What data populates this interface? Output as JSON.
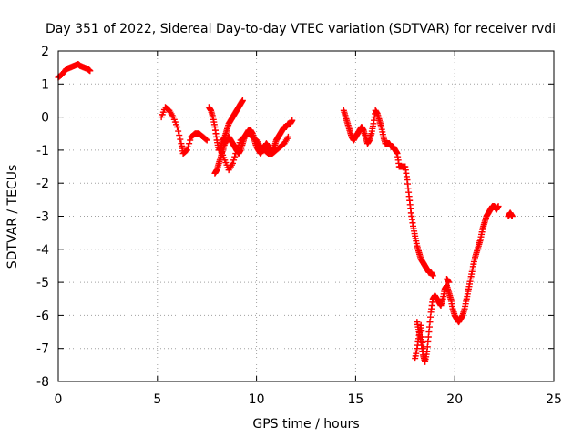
{
  "chart_data": {
    "type": "scatter",
    "title": "Day 351 of 2022, Sidereal Day-to-day VTEC variation (SDTVAR) for receiver rvdi",
    "xlabel": "GPS time / hours",
    "ylabel": "SDTVAR / TECUs",
    "xlim": [
      0,
      25
    ],
    "ylim": [
      -8,
      2
    ],
    "x_ticks": [
      0,
      5,
      10,
      15,
      20,
      25
    ],
    "y_ticks": [
      2,
      1,
      0,
      -1,
      -2,
      -3,
      -4,
      -5,
      -6,
      -7,
      -8
    ],
    "grid": true,
    "marker": "+",
    "marker_color": "#ff0000",
    "series": [
      {
        "x": [
          0.0,
          0.2,
          0.4,
          0.6,
          0.8,
          1.0,
          1.1,
          1.3,
          1.5,
          1.6
        ],
        "y": [
          1.2,
          1.3,
          1.45,
          1.5,
          1.55,
          1.6,
          1.55,
          1.5,
          1.45,
          1.4
        ]
      },
      {
        "x": [
          5.2,
          5.4,
          5.6,
          5.8,
          6.0,
          6.2,
          6.3,
          6.5,
          6.7,
          6.9,
          7.1,
          7.3,
          7.5
        ],
        "y": [
          0.0,
          0.3,
          0.2,
          0.0,
          -0.3,
          -0.8,
          -1.1,
          -1.0,
          -0.6,
          -0.5,
          -0.5,
          -0.6,
          -0.7
        ]
      },
      {
        "x": [
          7.6,
          7.7,
          7.8,
          7.9,
          8.0,
          8.1,
          8.2,
          8.3,
          8.4,
          8.5,
          8.6,
          8.7,
          8.8,
          8.9,
          9.0,
          9.1,
          9.2,
          9.3
        ],
        "y": [
          0.3,
          0.2,
          0.0,
          -0.3,
          -0.7,
          -1.0,
          -0.9,
          -0.7,
          -0.6,
          -0.4,
          -0.2,
          -0.1,
          0.0,
          0.1,
          0.2,
          0.3,
          0.4,
          0.5
        ]
      },
      {
        "x": [
          7.9,
          8.0,
          8.1,
          8.2,
          8.3,
          8.4,
          8.5,
          8.6,
          8.7,
          8.8,
          8.9,
          9.0,
          9.1,
          9.2,
          9.3,
          9.4,
          9.5,
          9.6,
          9.7,
          9.8,
          9.9,
          10.0,
          10.1,
          10.2,
          10.3,
          10.4,
          10.5,
          10.6,
          10.7,
          10.8,
          10.9,
          11.0,
          11.1,
          11.2,
          11.3,
          11.4,
          11.5,
          11.6,
          11.7,
          11.8
        ],
        "y": [
          -1.7,
          -1.6,
          -1.4,
          -1.2,
          -1.0,
          -0.8,
          -0.7,
          -0.6,
          -0.7,
          -0.8,
          -0.9,
          -1.0,
          -1.1,
          -1.0,
          -0.8,
          -0.6,
          -0.5,
          -0.4,
          -0.4,
          -0.5,
          -0.7,
          -0.9,
          -1.0,
          -1.1,
          -1.0,
          -0.9,
          -0.8,
          -0.9,
          -1.0,
          -1.0,
          -0.9,
          -0.7,
          -0.6,
          -0.5,
          -0.4,
          -0.3,
          -0.3,
          -0.2,
          -0.2,
          -0.1
        ]
      },
      {
        "x": [
          8.2,
          8.4,
          8.6,
          8.8,
          9.0,
          9.2,
          9.4,
          9.6,
          9.8,
          10.0,
          10.2,
          10.4,
          10.6,
          10.8,
          11.0,
          11.2,
          11.4,
          11.6
        ],
        "y": [
          -1.0,
          -1.3,
          -1.6,
          -1.4,
          -1.0,
          -0.7,
          -0.6,
          -0.5,
          -0.6,
          -0.7,
          -0.9,
          -1.0,
          -1.1,
          -1.1,
          -1.0,
          -0.9,
          -0.8,
          -0.6
        ]
      },
      {
        "x": [
          14.4,
          14.5,
          14.6,
          14.7,
          14.8,
          14.9,
          15.0,
          15.1,
          15.2,
          15.3,
          15.4,
          15.5,
          15.6,
          15.7,
          15.8,
          15.9,
          16.0,
          16.1,
          16.2,
          16.3,
          16.4,
          16.5,
          16.6,
          16.7,
          16.8,
          16.9,
          17.0,
          17.1,
          17.2,
          17.3,
          17.4,
          17.5,
          17.6,
          17.7,
          17.8,
          17.9,
          18.0,
          18.1,
          18.2,
          18.3,
          18.4,
          18.5,
          18.6,
          18.7,
          18.8,
          18.9
        ],
        "y": [
          0.2,
          0.0,
          -0.2,
          -0.4,
          -0.6,
          -0.7,
          -0.6,
          -0.5,
          -0.4,
          -0.3,
          -0.4,
          -0.6,
          -0.8,
          -0.7,
          -0.5,
          -0.2,
          0.2,
          0.1,
          -0.1,
          -0.3,
          -0.6,
          -0.8,
          -0.8,
          -0.8,
          -0.9,
          -0.9,
          -1.0,
          -1.1,
          -1.5,
          -1.5,
          -1.5,
          -1.5,
          -1.9,
          -2.4,
          -2.9,
          -3.3,
          -3.6,
          -3.9,
          -4.1,
          -4.3,
          -4.4,
          -4.5,
          -4.6,
          -4.7,
          -4.7,
          -4.8
        ]
      },
      {
        "x": [
          18.0,
          18.1,
          18.2,
          18.3,
          18.4,
          18.5,
          18.6,
          18.7,
          18.8,
          18.9,
          19.0,
          19.1,
          19.2,
          19.3,
          19.4,
          19.5,
          19.6,
          19.7,
          19.8,
          19.9,
          20.0,
          20.1,
          20.2,
          20.3,
          20.4,
          20.5,
          20.6,
          20.7,
          20.8,
          20.9,
          21.0,
          21.1,
          21.2,
          21.3,
          21.4,
          21.5,
          21.6,
          21.7,
          21.8,
          21.9,
          22.0,
          22.1,
          22.2
        ],
        "y": [
          -7.3,
          -7.0,
          -6.6,
          -6.3,
          -7.0,
          -7.4,
          -7.1,
          -6.5,
          -5.9,
          -5.5,
          -5.4,
          -5.5,
          -5.6,
          -5.7,
          -5.5,
          -5.2,
          -5.1,
          -5.3,
          -5.5,
          -5.8,
          -6.0,
          -6.1,
          -6.2,
          -6.1,
          -6.0,
          -5.8,
          -5.5,
          -5.2,
          -4.9,
          -4.6,
          -4.3,
          -4.1,
          -3.9,
          -3.7,
          -3.4,
          -3.2,
          -3.0,
          -2.9,
          -2.8,
          -2.7,
          -2.7,
          -2.8,
          -2.7
        ]
      },
      {
        "x": [
          18.1,
          18.2,
          18.3,
          18.4,
          18.5,
          19.6,
          19.7
        ],
        "y": [
          -6.2,
          -6.5,
          -6.8,
          -7.2,
          -7.4,
          -4.9,
          -5.0
        ]
      },
      {
        "x": [
          22.7,
          22.8,
          22.9
        ],
        "y": [
          -3.0,
          -2.9,
          -3.0
        ]
      }
    ]
  }
}
